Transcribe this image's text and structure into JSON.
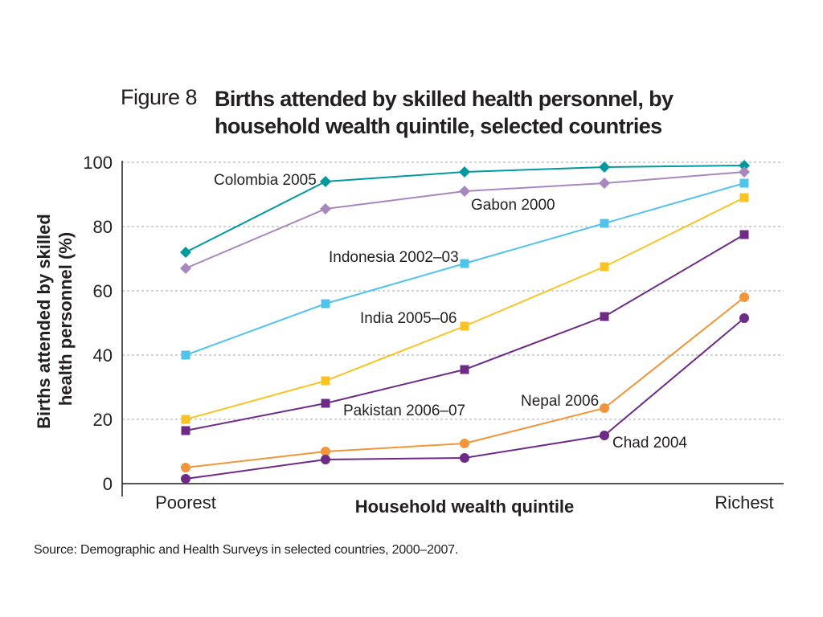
{
  "figure_label": "Figure 8",
  "title_line1": "Births attended by skilled health personnel, by",
  "title_line2": "household wealth quintile, selected countries",
  "source": "Source: Demographic and Health Surveys in selected countries, 2000–2007.",
  "chart_data": {
    "type": "line",
    "title": "Births attended by skilled health personnel, by household wealth quintile, selected countries",
    "xlabel": "Household wealth quintile",
    "ylabel_lines": [
      "Births attended by skilled",
      "health personnel (%)"
    ],
    "categories": [
      "Poorest",
      "",
      "",
      "",
      "Richest"
    ],
    "y_ticks": [
      "0",
      "20",
      "40",
      "60",
      "80",
      "100"
    ],
    "ylim": [
      0,
      100
    ],
    "grid": true,
    "series": [
      {
        "name": "Colombia 2005",
        "marker": "diamond",
        "color": "#00999e",
        "values": [
          72,
          94,
          97,
          98.5,
          99
        ]
      },
      {
        "name": "Gabon 2000",
        "marker": "diamond",
        "color": "#a787bd",
        "values": [
          67,
          85.5,
          91,
          93.5,
          97
        ]
      },
      {
        "name": "Indonesia 2002–03",
        "marker": "square",
        "color": "#4fc3ea",
        "values": [
          40,
          56,
          68.5,
          81,
          93.5
        ]
      },
      {
        "name": "India 2005–06",
        "marker": "square",
        "color": "#f9c326",
        "values": [
          20,
          32,
          49,
          67.5,
          89
        ]
      },
      {
        "name": "Pakistan 2006–07",
        "marker": "square",
        "color": "#6d2b87",
        "values": [
          16.5,
          25,
          35.5,
          52,
          77.5
        ]
      },
      {
        "name": "Nepal 2006",
        "marker": "circle",
        "color": "#f0953a",
        "values": [
          5,
          10,
          12.5,
          23.5,
          58
        ]
      },
      {
        "name": "Chad 2004",
        "marker": "circle",
        "color": "#6d2b87",
        "values": [
          1.5,
          7.5,
          8,
          15,
          51.5
        ]
      }
    ]
  }
}
